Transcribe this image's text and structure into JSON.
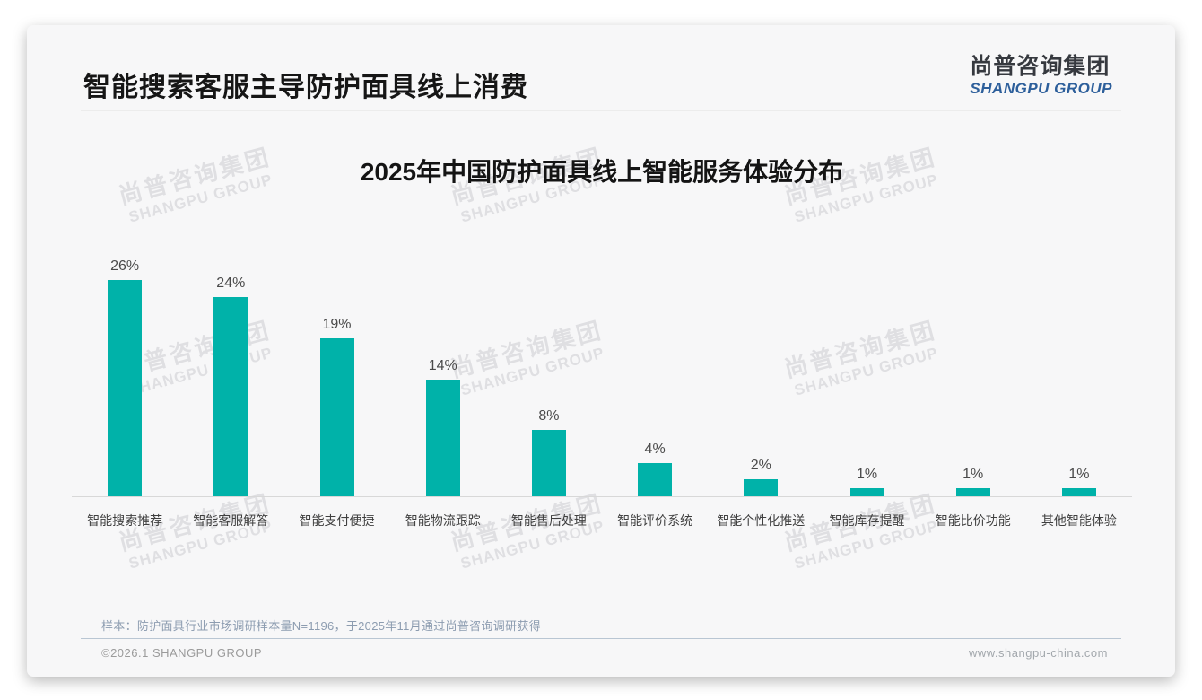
{
  "slide": {
    "title": "智能搜索客服主导防护面具线上消费",
    "logo": {
      "cn": "尚普咨询集团",
      "en": "SHANGPU GROUP"
    },
    "watermark": {
      "cn": "尚普咨询集团",
      "en": "SHANGPU GROUP"
    },
    "footnote": "样本：防护面具行业市场调研样本量N=1196，于2025年11月通过尚普咨询调研获得",
    "footer": {
      "copyright": "©2026.1 SHANGPU GROUP",
      "website": "www.shangpu-china.com"
    }
  },
  "chart_data": {
    "type": "bar",
    "title": "2025年中国防护面具线上智能服务体验分布",
    "categories": [
      "智能搜索推荐",
      "智能客服解答",
      "智能支付便捷",
      "智能物流跟踪",
      "智能售后处理",
      "智能评价系统",
      "智能个性化推送",
      "智能库存提醒",
      "智能比价功能",
      "其他智能体验"
    ],
    "values": [
      26,
      24,
      19,
      14,
      8,
      4,
      2,
      1,
      1,
      1
    ],
    "value_labels": [
      "26%",
      "24%",
      "19%",
      "14%",
      "8%",
      "4%",
      "2%",
      "1%",
      "1%",
      "1%"
    ],
    "unit": "%",
    "ylim": [
      0,
      28
    ],
    "grid": false,
    "legend": false,
    "data_labels": "above-bar",
    "bar_color": "#00b2a9"
  },
  "colors": {
    "bar": "#00b2a9",
    "logo_blue": "#2d5f9b",
    "logo_dark": "#36393f",
    "card_bg": "#f7f7f8",
    "footnote_text": "#8c9cb0",
    "divider": "#b9c6d3"
  }
}
